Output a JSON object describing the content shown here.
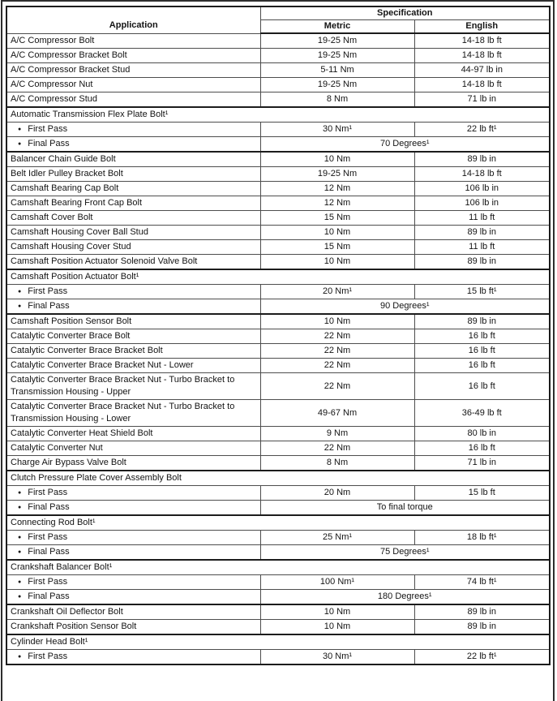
{
  "table": {
    "header": {
      "application": "Application",
      "specification": "Specification",
      "metric": "Metric",
      "english": "English"
    },
    "rows": [
      {
        "type": "item",
        "application": "A/C Compressor Bolt",
        "metric": "19-25 Nm",
        "english": "14-18 lb ft"
      },
      {
        "type": "item",
        "application": "A/C Compressor Bracket Bolt",
        "metric": "19-25 Nm",
        "english": "14-18 lb ft"
      },
      {
        "type": "item",
        "application": "A/C Compressor Bracket Stud",
        "metric": "5-11 Nm",
        "english": "44-97 lb in"
      },
      {
        "type": "item",
        "application": "A/C Compressor Nut",
        "metric": "19-25 Nm",
        "english": "14-18 lb ft"
      },
      {
        "type": "item",
        "application": "A/C Compressor Stud",
        "metric": "8 Nm",
        "english": "71 lb in"
      },
      {
        "type": "section",
        "application": "Automatic Transmission Flex Plate Bolt¹"
      },
      {
        "type": "sub",
        "application": "First Pass",
        "metric": "30 Nm¹",
        "english": "22 lb ft¹"
      },
      {
        "type": "sub_span",
        "application": "Final Pass",
        "value": "70 Degrees¹"
      },
      {
        "type": "item",
        "application": "Balancer Chain Guide Bolt",
        "metric": "10 Nm",
        "english": "89 lb in"
      },
      {
        "type": "item",
        "application": "Belt Idler Pulley Bracket Bolt",
        "metric": "19-25 Nm",
        "english": "14-18 lb ft"
      },
      {
        "type": "item",
        "application": "Camshaft Bearing Cap Bolt",
        "metric": "12 Nm",
        "english": "106 lb in"
      },
      {
        "type": "item",
        "application": "Camshaft Bearing Front Cap Bolt",
        "metric": "12 Nm",
        "english": "106 lb in"
      },
      {
        "type": "item",
        "application": "Camshaft Cover Bolt",
        "metric": "15 Nm",
        "english": "11 lb ft"
      },
      {
        "type": "item",
        "application": "Camshaft Housing Cover Ball Stud",
        "metric": "10 Nm",
        "english": "89 lb in"
      },
      {
        "type": "item",
        "application": "Camshaft Housing Cover Stud",
        "metric": "15 Nm",
        "english": "11 lb ft"
      },
      {
        "type": "item",
        "application": "Camshaft Position Actuator Solenoid Valve Bolt",
        "metric": "10 Nm",
        "english": "89 lb in"
      },
      {
        "type": "section",
        "application": "Camshaft Position Actuator Bolt¹"
      },
      {
        "type": "sub",
        "application": "First Pass",
        "metric": "20 Nm¹",
        "english": "15 lb ft¹"
      },
      {
        "type": "sub_span",
        "application": "Final Pass",
        "value": "90 Degrees¹"
      },
      {
        "type": "item",
        "application": "Camshaft Position Sensor Bolt",
        "metric": "10 Nm",
        "english": "89 lb in"
      },
      {
        "type": "item",
        "application": "Catalytic Converter Brace Bolt",
        "metric": "22 Nm",
        "english": "16 lb ft"
      },
      {
        "type": "item",
        "application": "Catalytic Converter Brace Bracket Bolt",
        "metric": "22 Nm",
        "english": "16 lb ft"
      },
      {
        "type": "item",
        "application": "Catalytic Converter Brace Bracket Nut - Lower",
        "metric": "22 Nm",
        "english": "16 lb ft"
      },
      {
        "type": "item",
        "application": "Catalytic Converter Brace Bracket Nut - Turbo Bracket to Transmission Housing - Upper",
        "metric": "22 Nm",
        "english": "16 lb ft"
      },
      {
        "type": "item",
        "application": "Catalytic Converter Brace Bracket Nut - Turbo Bracket to Transmission Housing - Lower",
        "metric": "49-67 Nm",
        "english": "36-49 lb ft"
      },
      {
        "type": "item",
        "application": "Catalytic Converter Heat Shield Bolt",
        "metric": "9 Nm",
        "english": "80 lb in"
      },
      {
        "type": "item",
        "application": "Catalytic Converter Nut",
        "metric": "22 Nm",
        "english": "16 lb ft"
      },
      {
        "type": "item",
        "application": "Charge Air Bypass Valve Bolt",
        "metric": "8 Nm",
        "english": "71 lb in"
      },
      {
        "type": "section",
        "application": "Clutch Pressure Plate Cover Assembly Bolt"
      },
      {
        "type": "sub",
        "application": "First Pass",
        "metric": "20 Nm",
        "english": "15 lb ft"
      },
      {
        "type": "sub_span",
        "application": "Final Pass",
        "value": "To final torque"
      },
      {
        "type": "section",
        "application": "Connecting Rod Bolt¹"
      },
      {
        "type": "sub",
        "application": "First Pass",
        "metric": "25 Nm¹",
        "english": "18 lb ft¹"
      },
      {
        "type": "sub_span",
        "application": "Final Pass",
        "value": "75 Degrees¹"
      },
      {
        "type": "section",
        "application": "Crankshaft Balancer Bolt¹"
      },
      {
        "type": "sub",
        "application": "First Pass",
        "metric": "100 Nm¹",
        "english": "74 lb ft¹"
      },
      {
        "type": "sub_span",
        "application": "Final Pass",
        "value": "180 Degrees¹"
      },
      {
        "type": "item",
        "application": "Crankshaft Oil Deflector Bolt",
        "metric": "10 Nm",
        "english": "89 lb in"
      },
      {
        "type": "item",
        "application": "Crankshaft Position Sensor Bolt",
        "metric": "10 Nm",
        "english": "89 lb in"
      },
      {
        "type": "section",
        "application": "Cylinder Head Bolt¹"
      },
      {
        "type": "sub",
        "application": "First Pass",
        "metric": "30 Nm¹",
        "english": "22 lb ft¹"
      }
    ]
  }
}
